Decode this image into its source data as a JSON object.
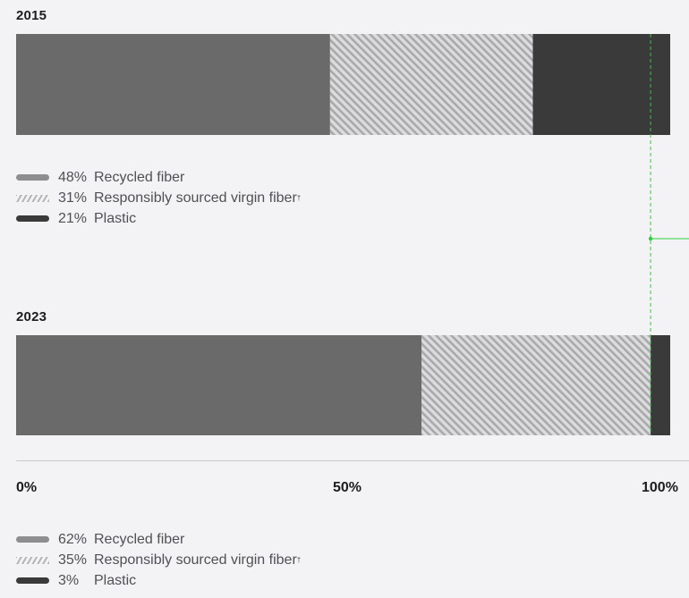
{
  "chart_data": [
    {
      "type": "bar",
      "title": "2015",
      "orientation": "horizontal-stacked",
      "series": [
        {
          "name": "Recycled fiber",
          "value": 48,
          "label": "48%",
          "color": "#6a6a6a",
          "pattern": "solid"
        },
        {
          "name": "Responsibly sourced virgin fiber",
          "value": 31,
          "label": "31%",
          "color": "#bdbdbf",
          "pattern": "hatched"
        },
        {
          "name": "Plastic",
          "value": 21,
          "label": "21%",
          "color": "#3a3a3a",
          "pattern": "solid"
        }
      ],
      "xlim": [
        0,
        100
      ]
    },
    {
      "type": "bar",
      "title": "2023",
      "orientation": "horizontal-stacked",
      "series": [
        {
          "name": "Recycled fiber",
          "value": 62,
          "label": "62%",
          "color": "#6a6a6a",
          "pattern": "solid"
        },
        {
          "name": "Responsibly sourced virgin fiber",
          "value": 35,
          "label": "35%",
          "color": "#bdbdbf",
          "pattern": "hatched"
        },
        {
          "name": "Plastic",
          "value": 3,
          "label": "3%",
          "color": "#3a3a3a",
          "pattern": "solid"
        }
      ],
      "xlim": [
        0,
        100
      ]
    }
  ],
  "axis": {
    "ticks": [
      {
        "value": 0,
        "label": "0%"
      },
      {
        "value": 50,
        "label": "50%"
      },
      {
        "value": 100,
        "label": "100%"
      }
    ]
  },
  "legend_suffix": "†",
  "colors": {
    "background": "#f3f3f5",
    "guide": "#2ecc40",
    "recycled": "#6a6a6a",
    "virgin": "#bdbdbf",
    "plastic": "#3a3a3a"
  }
}
